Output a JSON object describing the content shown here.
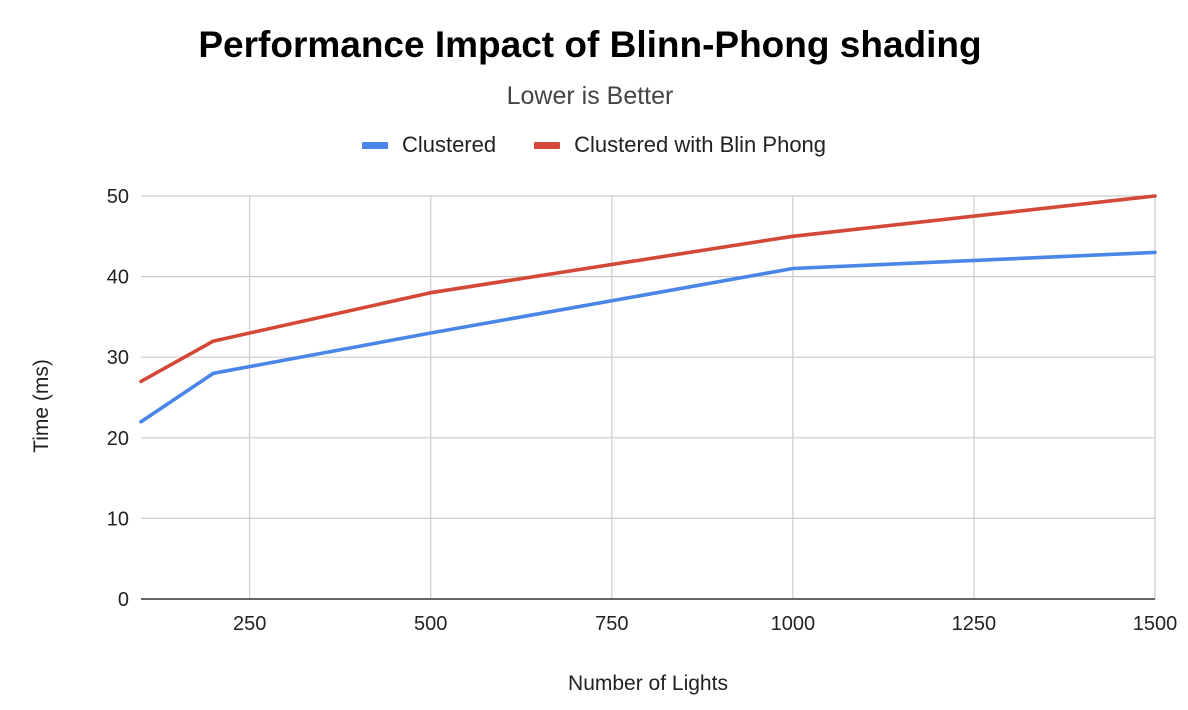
{
  "chart_data": {
    "type": "line",
    "title": "Performance Impact of Blinn-Phong shading",
    "subtitle": "Lower is Better",
    "xlabel": "Number of Lights",
    "ylabel": "Time (ms)",
    "xlim": [
      100,
      1500
    ],
    "ylim": [
      0,
      50
    ],
    "x_ticks": [
      "250",
      "500",
      "750",
      "1000",
      "1250",
      "1500"
    ],
    "y_ticks": [
      "0",
      "10",
      "20",
      "30",
      "40",
      "50"
    ],
    "grid": true,
    "legend_position": "top",
    "x": [
      100,
      200,
      500,
      1000,
      1500
    ],
    "series": [
      {
        "name": "Clustered",
        "color": "#4a86e8",
        "values": [
          22,
          28,
          33,
          41,
          43
        ]
      },
      {
        "name": "Clustered with Blin Phong",
        "color": "#d34836",
        "values": [
          27,
          32,
          38,
          45,
          50
        ]
      }
    ]
  }
}
